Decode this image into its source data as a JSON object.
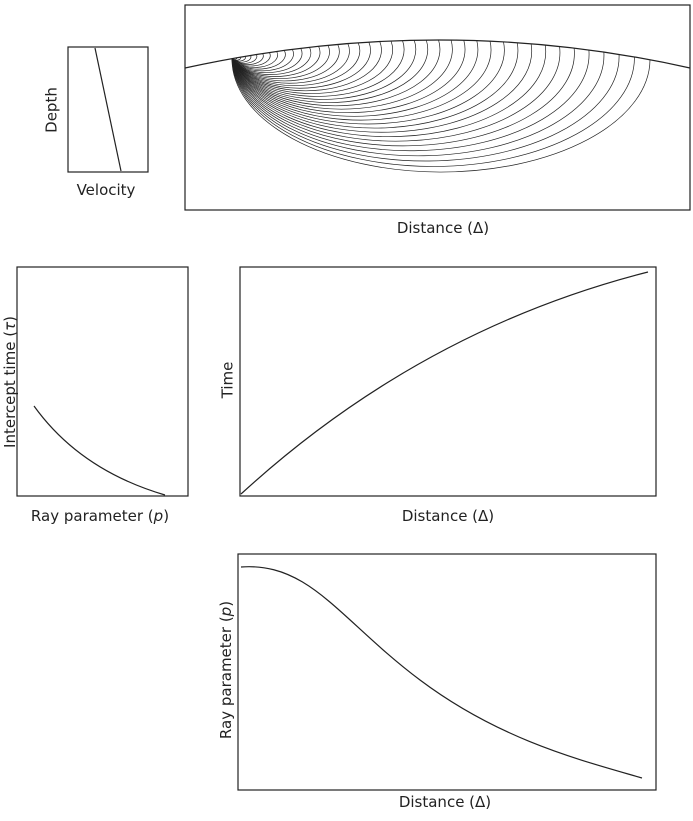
{
  "velocity_panel": {
    "y_label": "Depth",
    "x_label": "Velocity"
  },
  "ray_panel": {
    "x_label": "Distance (Δ)"
  },
  "tau_panel": {
    "y_label": [
      "Intercept time (",
      "τ",
      ")"
    ],
    "x_label": [
      "Ray parameter (",
      "p",
      ")"
    ]
  },
  "time_panel": {
    "y_label": "Time",
    "x_label": "Distance (Δ)"
  },
  "p_panel": {
    "y_label": [
      "Ray parameter (",
      "p",
      ")"
    ],
    "x_label": "Distance (Δ)"
  }
}
